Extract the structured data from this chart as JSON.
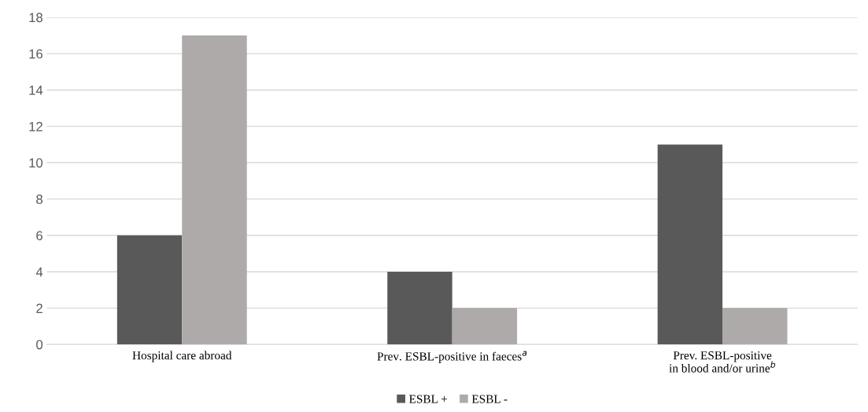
{
  "chart_data": {
    "type": "bar",
    "categories": [
      "Hospital care abroad",
      "Prev. ESBL-positive in faeces$^{a}$",
      "Prev. ESBL-positive\nin blood and/or urine$^{b}$"
    ],
    "series": [
      {
        "name": "ESBL +",
        "color": "#595959",
        "values": [
          6,
          4,
          11
        ]
      },
      {
        "name": "ESBL -",
        "color": "#aeaaaa",
        "values": [
          17,
          2,
          2
        ]
      }
    ],
    "ylim": [
      0,
      18
    ],
    "yticks": [
      0,
      2,
      4,
      6,
      8,
      10,
      12,
      14,
      16,
      18
    ],
    "grid": "y",
    "legend": "bottom"
  }
}
